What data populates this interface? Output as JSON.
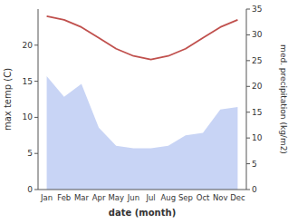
{
  "chart_data": {
    "type": "line",
    "categories": [
      "Jan",
      "Feb",
      "Mar",
      "Apr",
      "May",
      "Jun",
      "Jul",
      "Aug",
      "Sep",
      "Oct",
      "Nov",
      "Dec"
    ],
    "series": [
      {
        "type": "area",
        "axis": "y2",
        "color": "#c8d4f5",
        "values": [
          22.0,
          18.0,
          20.5,
          12.0,
          8.5,
          8.0,
          8.0,
          8.5,
          10.5,
          11.0,
          15.5,
          16.0
        ]
      },
      {
        "type": "line",
        "color": "#c0504d",
        "values": [
          24.0,
          23.5,
          22.5,
          21.0,
          19.5,
          18.5,
          18.0,
          18.5,
          19.5,
          21.0,
          22.5,
          23.5
        ]
      }
    ],
    "xlabel": "date (month)",
    "ylabel": "max temp (C)",
    "y2label": "med. precipitation (kg/m2)",
    "ylim": [
      0,
      25
    ],
    "yticks": [
      0,
      5,
      10,
      15,
      20
    ],
    "y2lim": [
      0,
      35
    ],
    "y2ticks": [
      0,
      5,
      10,
      15,
      20,
      25,
      30,
      35
    ]
  }
}
